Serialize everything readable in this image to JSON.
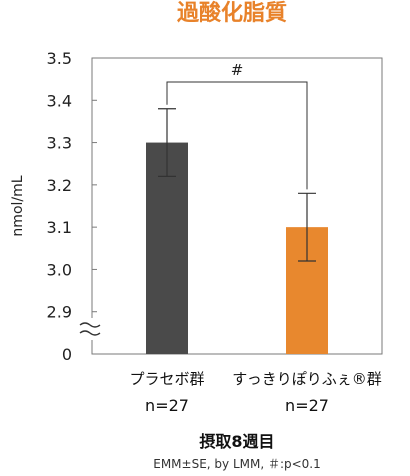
{
  "chart_data": {
    "type": "bar",
    "title": "過酸化脂質",
    "ylabel": "nmol/mL",
    "xlabel": "摂取8週目",
    "footnote": "EMM±SE, by LMM, ＃:p<0.1",
    "ylim": [
      2.8,
      3.5
    ],
    "axis_break": true,
    "y_ticks": [
      "3.5",
      "3.4",
      "3.3",
      "3.2",
      "3.1",
      "3.0",
      "2.9",
      "0"
    ],
    "y_tick_values": [
      3.5,
      3.4,
      3.3,
      3.2,
      3.1,
      3.0,
      2.9,
      2.8
    ],
    "categories": [
      "プラセボ群",
      "すっきりぽりふぇ®群"
    ],
    "n_labels": [
      "n=27",
      "n=27"
    ],
    "values": [
      3.3,
      3.1
    ],
    "errors": [
      0.08,
      0.08
    ],
    "colors": [
      "#4a4a4a",
      "#e8882e"
    ],
    "significance": {
      "between": [
        0,
        1
      ],
      "label": "#"
    },
    "grid": false
  }
}
